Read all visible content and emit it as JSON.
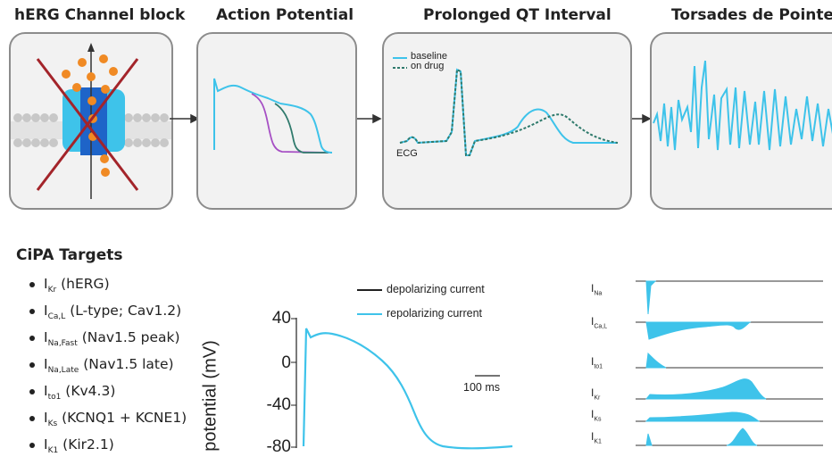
{
  "panels": {
    "herg_title": "hERG Channel block",
    "ap_title": "Action Potential",
    "qt_title": "Prolonged QT Interval",
    "tdp_title": "Torsades de Pointes"
  },
  "qt_legend": {
    "baseline": "baseline",
    "on_drug": "on drug",
    "ecg": "ECG"
  },
  "cipa": {
    "title": "CiPA Targets",
    "targets": [
      {
        "sym": "I",
        "sub": "Kr",
        "desc": "(hERG)"
      },
      {
        "sym": "I",
        "sub": "Ca,L",
        "desc": "(L-type; Cav1.2)"
      },
      {
        "sym": "I",
        "sub": "Na,Fast",
        "desc": "(Nav1.5 peak)"
      },
      {
        "sym": "I",
        "sub": "Na,Late",
        "desc": "(Nav1.5 late)"
      },
      {
        "sym": "I",
        "sub": "to1",
        "desc": "(Kv4.3)"
      },
      {
        "sym": "I",
        "sub": "Ks",
        "desc": "(KCNQ1 + KCNE1)"
      },
      {
        "sym": "I",
        "sub": "K1",
        "desc": "(Kir2.1)"
      }
    ]
  },
  "ap_plot": {
    "ylabel": "potential (mV)",
    "yticks": [
      "40",
      "0",
      "-40",
      "-80"
    ],
    "legend_depol": "depolarizing current",
    "legend_repol": "repolarizing current",
    "scale_bar": "100 ms"
  },
  "currents": [
    {
      "sym": "I",
      "sub": "Na"
    },
    {
      "sym": "I",
      "sub": "Ca,L"
    },
    {
      "sym": "I",
      "sub": "to1"
    },
    {
      "sym": "I",
      "sub": "Kr"
    },
    {
      "sym": "I",
      "sub": "Ks"
    },
    {
      "sym": "I",
      "sub": "K1"
    }
  ],
  "colors": {
    "accent": "#3ec3ea",
    "purple": "#a64fc4",
    "teal": "#2f7a6c",
    "orange": "#f08a24",
    "blue_dark": "#1e64c8",
    "red_x": "#a3242a"
  }
}
